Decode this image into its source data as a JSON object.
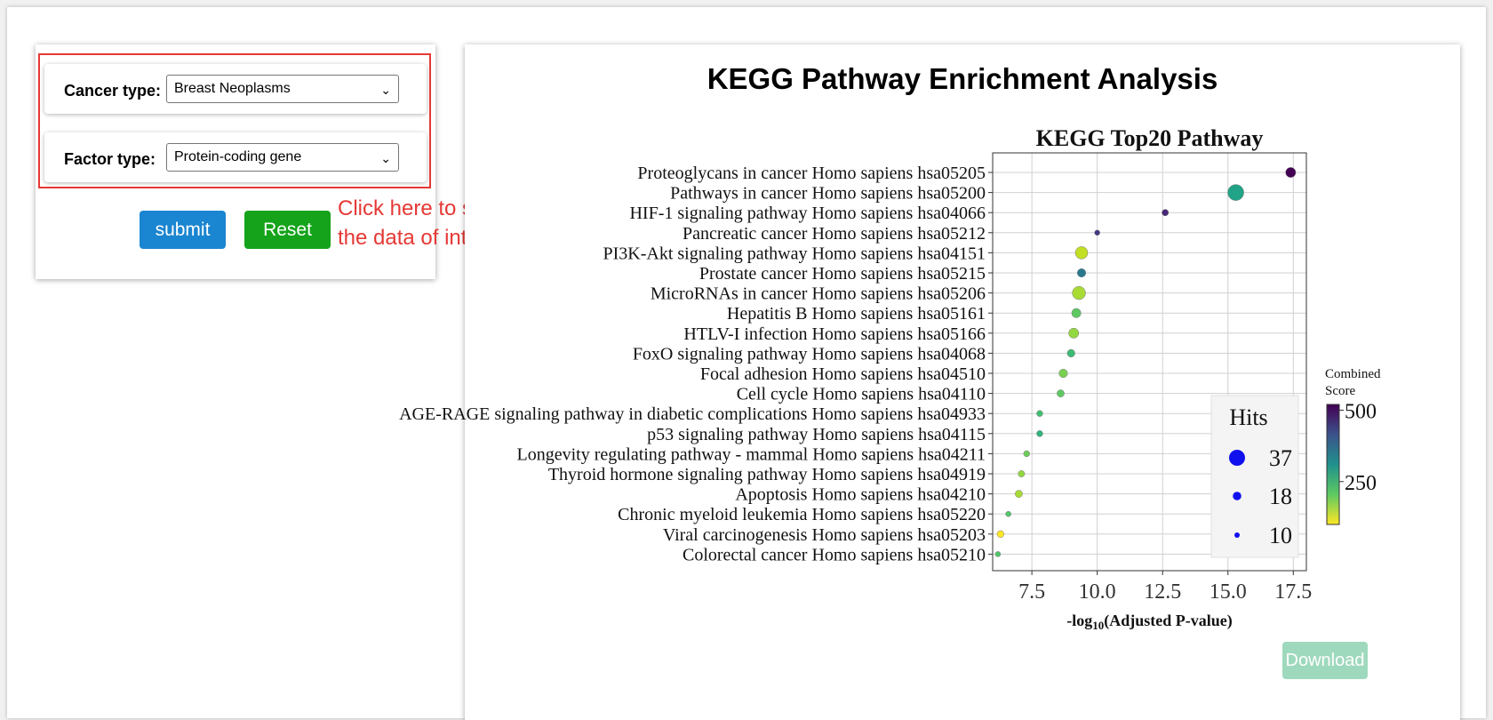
{
  "form": {
    "cancer_label": "Cancer type:",
    "cancer_value": "Breast Neoplasms",
    "factor_label": "Factor type:",
    "factor_value": "Protein-coding gene",
    "submit_label": "submit",
    "reset_label": "Reset",
    "hint_line1": "Click here to select",
    "hint_line2": "the data of interest"
  },
  "panel": {
    "title": "KEGG Pathway Enrichment Analysis",
    "download_label": "Download"
  },
  "colors": {
    "accent_red": "#e53935",
    "submit_blue": "#1a85d0",
    "reset_green": "#14a31a",
    "download_green": "#9fd9bd"
  },
  "chart_data": {
    "type": "scatter",
    "title": "KEGG Top20 Pathway",
    "xlabel_prefix": "-log",
    "xlabel_sub": "10",
    "xlabel_suffix": "(Adjusted P-value)",
    "xlim": [
      6.0,
      18.0
    ],
    "xticks": [
      "7.5",
      "10.0",
      "12.5",
      "15.0",
      "17.5"
    ],
    "xtick_values": [
      7.5,
      10.0,
      12.5,
      15.0,
      17.5
    ],
    "grid": true,
    "categories": [
      "Proteoglycans in cancer Homo sapiens hsa05205",
      "Pathways in cancer Homo sapiens hsa05200",
      "HIF-1 signaling pathway Homo sapiens hsa04066",
      "Pancreatic cancer Homo sapiens hsa05212",
      "PI3K-Akt signaling pathway Homo sapiens hsa04151",
      "Prostate cancer Homo sapiens hsa05215",
      "MicroRNAs in cancer Homo sapiens hsa05206",
      "Hepatitis B Homo sapiens hsa05161",
      "HTLV-I infection Homo sapiens hsa05166",
      "FoxO signaling pathway Homo sapiens hsa04068",
      "Focal adhesion Homo sapiens hsa04510",
      "Cell cycle Homo sapiens hsa04110",
      "AGE-RAGE signaling pathway in diabetic complications Homo sapiens hsa04933",
      "p53 signaling pathway Homo sapiens hsa04115",
      "Longevity regulating pathway - mammal Homo sapiens hsa04211",
      "Thyroid hormone signaling pathway Homo sapiens hsa04919",
      "Apoptosis Homo sapiens hsa04210",
      "Chronic myeloid leukemia Homo sapiens hsa05220",
      "Viral carcinogenesis Homo sapiens hsa05203",
      "Colorectal cancer Homo sapiens hsa05210"
    ],
    "x": [
      17.4,
      15.3,
      12.6,
      10.0,
      9.4,
      9.4,
      9.3,
      9.2,
      9.1,
      9.0,
      8.7,
      8.6,
      7.8,
      7.8,
      7.3,
      7.1,
      7.0,
      6.6,
      6.3,
      6.2
    ],
    "hits": [
      22,
      37,
      13,
      10,
      28,
      18,
      30,
      20,
      22,
      16,
      18,
      15,
      12,
      12,
      12,
      13,
      15,
      10,
      14,
      10
    ],
    "color_hex": [
      "#440154",
      "#20a386",
      "#472878",
      "#453781",
      "#c2df23",
      "#2a788e",
      "#a8db34",
      "#5ec962",
      "#93d741",
      "#3bbb75",
      "#7ad151",
      "#5ec962",
      "#42be71",
      "#2fb47c",
      "#6ccd5a",
      "#93d741",
      "#a8db34",
      "#52c569",
      "#fde725",
      "#52c569"
    ],
    "size_legend": {
      "title": "Hits",
      "values": [
        37,
        18,
        10
      ],
      "labels": [
        "37",
        "18",
        "10"
      ]
    },
    "color_legend": {
      "title_line1": "Combined",
      "title_line2": "Score",
      "ticks": [
        "500",
        "250"
      ],
      "tick_values": [
        500,
        250
      ],
      "range": [
        100,
        520
      ]
    }
  }
}
